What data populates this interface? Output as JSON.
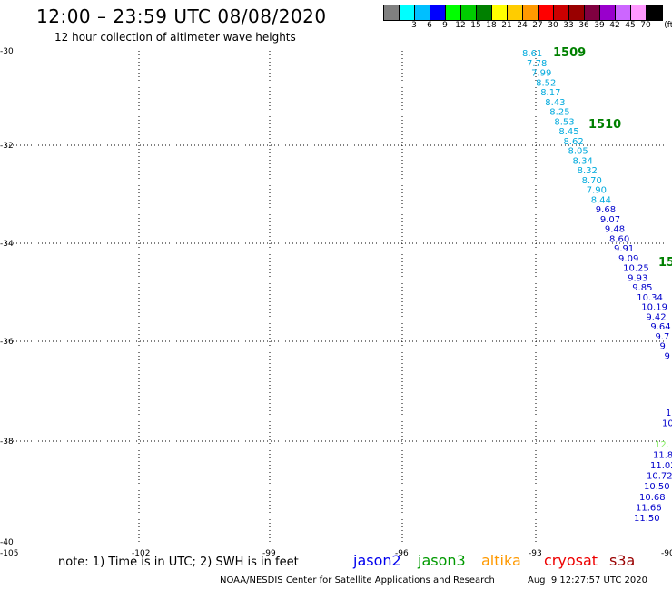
{
  "header": {
    "title": "12:00 – 23:59 UTC 08/08/2020",
    "subtitle": "12 hour collection of altimeter wave heights"
  },
  "legend": {
    "unit": "(ft)",
    "bins": [
      {
        "label": "",
        "color": "#808080"
      },
      {
        "label": "3",
        "color": "#00ffff"
      },
      {
        "label": "6",
        "color": "#00bfff"
      },
      {
        "label": "9",
        "color": "#0000ff"
      },
      {
        "label": "12",
        "color": "#00ff00"
      },
      {
        "label": "15",
        "color": "#00cc00"
      },
      {
        "label": "18",
        "color": "#008000"
      },
      {
        "label": "21",
        "color": "#ffff00"
      },
      {
        "label": "24",
        "color": "#ffcc00"
      },
      {
        "label": "27",
        "color": "#ff9900"
      },
      {
        "label": "30",
        "color": "#ff0000"
      },
      {
        "label": "33",
        "color": "#cc0000"
      },
      {
        "label": "36",
        "color": "#990000"
      },
      {
        "label": "39",
        "color": "#800040"
      },
      {
        "label": "42",
        "color": "#9900cc"
      },
      {
        "label": "45",
        "color": "#cc66ff"
      },
      {
        "label": "70",
        "color": "#ff99ff"
      },
      {
        "label": "",
        "color": "#000000"
      }
    ]
  },
  "axes": {
    "lon_ticks": [
      "-105",
      "-102",
      "-99",
      "-96",
      "-93",
      "-90"
    ],
    "lat_ticks": [
      "-30",
      "-32",
      "-34",
      "-36",
      "-38",
      "-40"
    ]
  },
  "map_data": {
    "track_a": {
      "color_light": "#00aadd",
      "color_dark": "#0000cc",
      "labels": [
        "8.61",
        "7.78",
        "7.99",
        "8.52",
        "8.17",
        "8.43",
        "8.25",
        "8.53",
        "8.45",
        "8.62",
        "8.05",
        "8.34",
        "8.32",
        "8.70",
        "7.90",
        "8.44",
        "9.68",
        "9.07",
        "9.48",
        "8.60",
        "9.91",
        "9.09",
        "10.25",
        "9.93",
        "9.85",
        "10.34",
        "10.19",
        "9.42",
        "9.64",
        "9.7",
        "9.",
        "9"
      ]
    },
    "track_b": {
      "color": "#0000cc",
      "highlight_color": "#88ee66",
      "labels": [
        "1",
        "10",
        "",
        "12.",
        "11.8",
        "11.02",
        "10.72",
        "10.50",
        "10.68",
        "11.66",
        "11.50"
      ]
    },
    "time_labels": [
      "1509",
      "1510",
      "15"
    ]
  },
  "footer": {
    "note": "note: 1) Time is in UTC; 2) SWH is in feet",
    "satellites": [
      {
        "name": "jason2",
        "color": "#0000ee"
      },
      {
        "name": "jason3",
        "color": "#009900"
      },
      {
        "name": "altika",
        "color": "#ff9900"
      },
      {
        "name": "cryosat",
        "color": "#ee0000"
      },
      {
        "name": "s3a",
        "color": "#990000"
      }
    ],
    "credit": "NOAA/NESDIS Center for Satellite Applications and Research",
    "timestamp": "Aug  9 12:27:57 UTC 2020"
  }
}
